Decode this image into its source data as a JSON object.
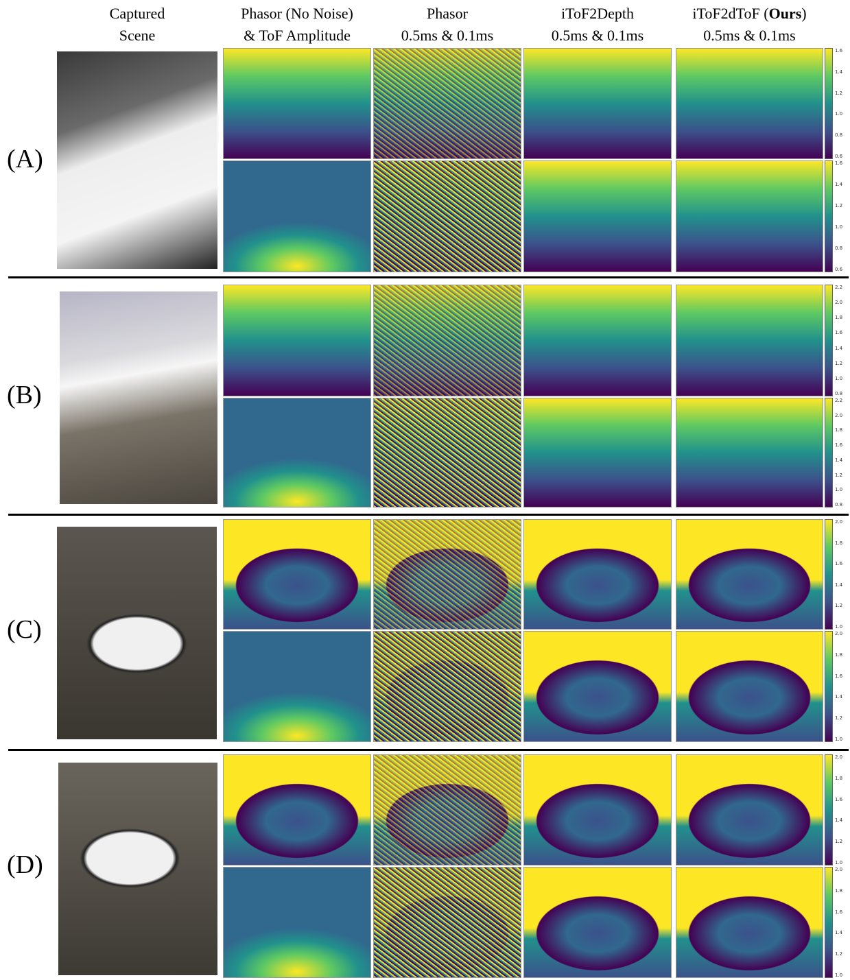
{
  "headers": [
    {
      "line1": "Captured",
      "line2": "Scene"
    },
    {
      "line1": "Phasor (No Noise)",
      "line2": "& ToF Amplitude"
    },
    {
      "line1": "Phasor",
      "line2": "0.5ms & 0.1ms"
    },
    {
      "line1": "iToF2Depth",
      "line2": "0.5ms & 0.1ms"
    },
    {
      "line1_before": "iToF2dToF (",
      "line1_bold": "Ours",
      "line1_after": ")",
      "line2": "0.5ms & 0.1ms"
    }
  ],
  "rows": [
    {
      "label": "(A)",
      "colorbar_top": [
        "0.6",
        "0.8",
        "1.0",
        "1.2",
        "1.4",
        "1.6"
      ],
      "colorbar_bottom": [
        "0.6",
        "0.8",
        "1.0",
        "1.2",
        "1.4",
        "1.6"
      ]
    },
    {
      "label": "(B)",
      "colorbar_top": [
        "0.8",
        "1.0",
        "1.2",
        "1.4",
        "1.6",
        "1.8",
        "2.0",
        "2.2"
      ],
      "colorbar_bottom": [
        "0.8",
        "1.0",
        "1.2",
        "1.4",
        "1.6",
        "1.8",
        "2.0",
        "2.2"
      ]
    },
    {
      "label": "(C)",
      "colorbar_top": [
        "1.0",
        "1.2",
        "1.4",
        "1.6",
        "1.8",
        "2.0"
      ],
      "colorbar_bottom": [
        "1.0",
        "1.2",
        "1.4",
        "1.6",
        "1.8",
        "2.0"
      ]
    },
    {
      "label": "(D)",
      "colorbar_top": [
        "1.0",
        "1.2",
        "1.4",
        "1.6",
        "1.8",
        "2.0"
      ],
      "colorbar_bottom": [
        "1.0",
        "1.2",
        "1.4",
        "1.6",
        "1.8",
        "2.0"
      ]
    }
  ]
}
